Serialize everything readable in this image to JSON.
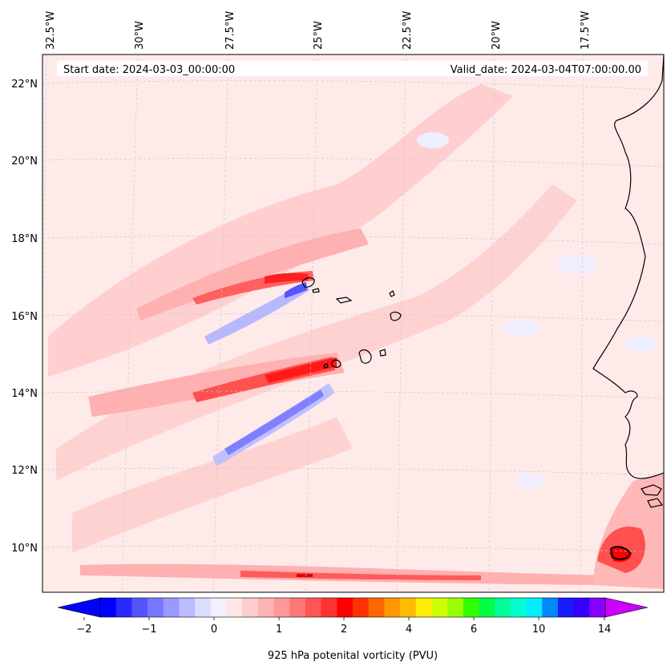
{
  "header": {
    "start_date": "Start date: 2024-03-03_00:00:00",
    "valid_date": "Valid_date: 2024-03-04T07:00:00.00"
  },
  "axes": {
    "lon_labels": [
      "32.5°W",
      "30°W",
      "27.5°W",
      "25°W",
      "22.5°W",
      "20°W",
      "17.5°W"
    ],
    "lat_labels": [
      "22°N",
      "20°N",
      "18°N",
      "16°N",
      "14°N",
      "12°N",
      "10°N"
    ]
  },
  "colorbar": {
    "label": "925 hPa potenital vorticity (PVU)",
    "ticks": [
      "−2",
      "−1",
      "0",
      "1",
      "2",
      "4",
      "6",
      "10",
      "14"
    ],
    "colors": [
      "#0000ff",
      "#2a2aff",
      "#5555ff",
      "#7777ff",
      "#9999ff",
      "#bbbbff",
      "#dcdcff",
      "#f0f0ff",
      "#ffe6e6",
      "#ffcccc",
      "#ffb3b3",
      "#ff9999",
      "#ff7777",
      "#ff5555",
      "#ff3333",
      "#ff0000",
      "#ff3300",
      "#ff6600",
      "#ff9900",
      "#ffbb00",
      "#ffee00",
      "#ccff00",
      "#99ff00",
      "#33ff00",
      "#00ff44",
      "#00ff99",
      "#00ffcc",
      "#00eeff",
      "#0088ff",
      "#1a1aff",
      "#3300ff",
      "#8800ff"
    ],
    "under_color": "#0000ff",
    "over_color": "#cc00ff"
  },
  "map": {
    "background_color": "#ffeaea",
    "lon_range": [
      "32.5°W",
      "15.5°W"
    ],
    "lat_range": [
      "9°N",
      "22.8°N"
    ]
  }
}
